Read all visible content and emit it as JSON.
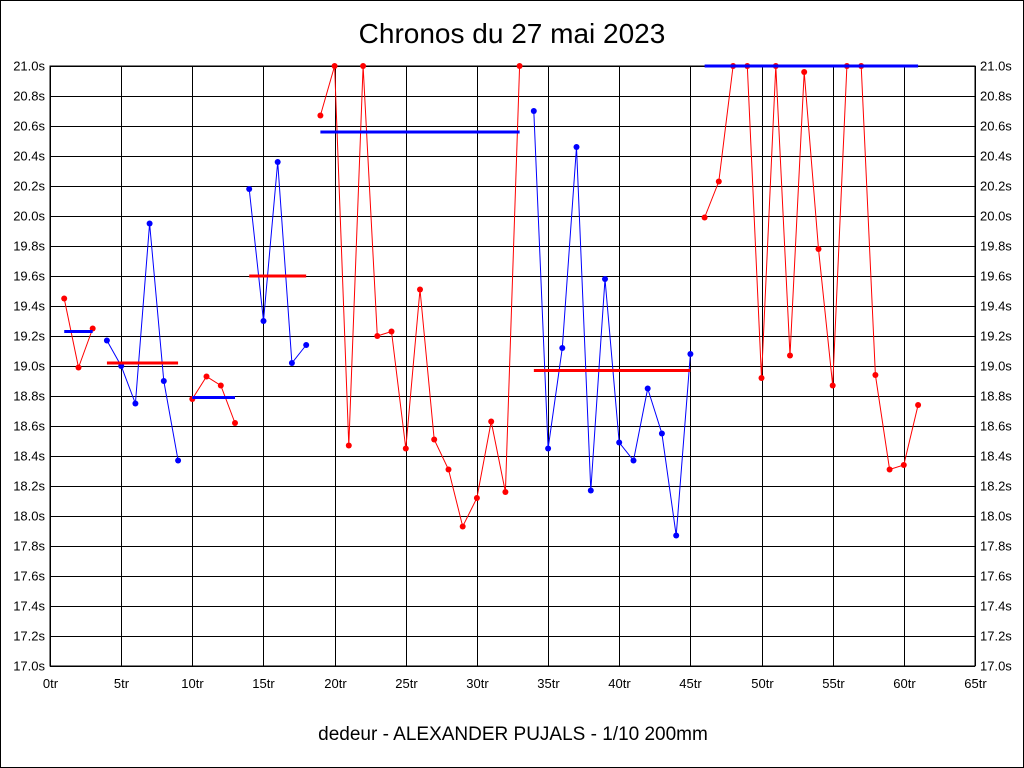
{
  "chart_data": {
    "type": "line",
    "title": "Chronos du 27 mai 2023",
    "xlabel": "dedeur - ALEXANDER PUJALS - 1/10 200mm",
    "ylabel": "",
    "x_range": [
      0,
      65
    ],
    "y_range": [
      17.0,
      21.0
    ],
    "x_ticks": [
      {
        "value": 0,
        "label": "0tr"
      },
      {
        "value": 5,
        "label": "5tr"
      },
      {
        "value": 10,
        "label": "10tr"
      },
      {
        "value": 15,
        "label": "15tr"
      },
      {
        "value": 20,
        "label": "20tr"
      },
      {
        "value": 25,
        "label": "25tr"
      },
      {
        "value": 30,
        "label": "30tr"
      },
      {
        "value": 35,
        "label": "35tr"
      },
      {
        "value": 40,
        "label": "40tr"
      },
      {
        "value": 45,
        "label": "45tr"
      },
      {
        "value": 50,
        "label": "50tr"
      },
      {
        "value": 55,
        "label": "55tr"
      },
      {
        "value": 60,
        "label": "60tr"
      },
      {
        "value": 65,
        "label": "65tr"
      }
    ],
    "y_ticks": [
      {
        "value": 17.0,
        "label": "17.0s"
      },
      {
        "value": 17.2,
        "label": "17.2s"
      },
      {
        "value": 17.4,
        "label": "17.4s"
      },
      {
        "value": 17.6,
        "label": "17.6s"
      },
      {
        "value": 17.8,
        "label": "17.8s"
      },
      {
        "value": 18.0,
        "label": "18.0s"
      },
      {
        "value": 18.2,
        "label": "18.2s"
      },
      {
        "value": 18.4,
        "label": "18.4s"
      },
      {
        "value": 18.6,
        "label": "18.6s"
      },
      {
        "value": 18.8,
        "label": "18.8s"
      },
      {
        "value": 19.0,
        "label": "19.0s"
      },
      {
        "value": 19.2,
        "label": "19.2s"
      },
      {
        "value": 19.4,
        "label": "19.4s"
      },
      {
        "value": 19.6,
        "label": "19.6s"
      },
      {
        "value": 19.8,
        "label": "19.8s"
      },
      {
        "value": 20.0,
        "label": "20.0s"
      },
      {
        "value": 20.2,
        "label": "20.2s"
      },
      {
        "value": 20.4,
        "label": "20.4s"
      },
      {
        "value": 20.6,
        "label": "20.6s"
      },
      {
        "value": 20.8,
        "label": "20.8s"
      },
      {
        "value": 21.0,
        "label": "21.0s"
      }
    ],
    "grid": true,
    "colors": {
      "red": "#ff0000",
      "blue": "#0000ff",
      "grid": "#000000"
    },
    "segments": [
      {
        "color": "red",
        "points": [
          [
            1,
            19.45
          ],
          [
            2,
            18.99
          ],
          [
            3,
            19.25
          ]
        ],
        "avg": 19.23,
        "avg_color": "blue",
        "avg_range": [
          1,
          3
        ]
      },
      {
        "color": "blue",
        "points": [
          [
            4,
            19.17
          ],
          [
            5,
            19.0
          ],
          [
            6,
            18.75
          ],
          [
            7,
            19.95
          ],
          [
            8,
            18.9
          ],
          [
            9,
            18.37
          ]
        ],
        "avg": 19.02,
        "avg_color": "red",
        "avg_range": [
          4,
          9
        ]
      },
      {
        "color": "red",
        "points": [
          [
            10,
            18.78
          ],
          [
            11,
            18.93
          ],
          [
            12,
            18.87
          ],
          [
            13,
            18.62
          ]
        ],
        "avg": 18.79,
        "avg_color": "blue",
        "avg_range": [
          10,
          13
        ]
      },
      {
        "color": "blue",
        "points": [
          [
            14,
            20.18
          ],
          [
            15,
            19.3
          ],
          [
            16,
            20.36
          ],
          [
            17,
            19.02
          ],
          [
            18,
            19.14
          ]
        ],
        "avg": 19.6,
        "avg_color": "red",
        "avg_range": [
          14,
          18
        ]
      },
      {
        "color": "red",
        "points": [
          [
            19,
            20.67
          ],
          [
            20,
            21.0
          ],
          [
            21,
            18.47
          ],
          [
            22,
            21.0
          ],
          [
            23,
            19.2
          ],
          [
            24,
            19.23
          ],
          [
            25,
            18.45
          ],
          [
            26,
            19.51
          ],
          [
            27,
            18.51
          ],
          [
            28,
            18.31
          ],
          [
            29,
            17.93
          ],
          [
            30,
            18.12
          ],
          [
            31,
            18.63
          ],
          [
            32,
            18.16
          ],
          [
            33,
            21.0
          ]
        ],
        "avg": 20.56,
        "avg_color": "blue",
        "avg_range": [
          19,
          33
        ]
      },
      {
        "color": "blue",
        "points": [
          [
            34,
            20.7
          ],
          [
            35,
            18.45
          ],
          [
            36,
            19.12
          ],
          [
            37,
            20.46
          ],
          [
            38,
            18.17
          ],
          [
            39,
            19.58
          ],
          [
            40,
            18.49
          ],
          [
            41,
            18.37
          ],
          [
            42,
            18.85
          ],
          [
            43,
            18.55
          ],
          [
            44,
            17.87
          ],
          [
            45,
            19.08
          ]
        ],
        "avg": 18.97,
        "avg_color": "red",
        "avg_range": [
          34,
          45
        ]
      },
      {
        "color": "red",
        "points": [
          [
            46,
            19.99
          ],
          [
            47,
            20.23
          ],
          [
            48,
            21.0
          ],
          [
            49,
            21.0
          ],
          [
            50,
            18.92
          ],
          [
            51,
            21.0
          ],
          [
            52,
            19.07
          ],
          [
            53,
            20.96
          ],
          [
            54,
            19.78
          ],
          [
            55,
            18.87
          ],
          [
            56,
            21.0
          ],
          [
            57,
            21.0
          ],
          [
            58,
            18.94
          ],
          [
            59,
            18.31
          ],
          [
            60,
            18.34
          ],
          [
            61,
            18.74
          ]
        ],
        "avg": 21.0,
        "avg_color": "blue",
        "avg_range": [
          46,
          61
        ]
      }
    ]
  }
}
